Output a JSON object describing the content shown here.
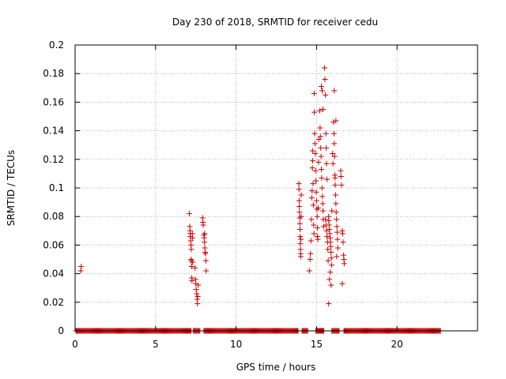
{
  "chart_data": {
    "type": "scatter",
    "title": "Day 230 of 2018, SRMTID for receiver cedu",
    "xlabel": "GPS time / hours",
    "ylabel": "SRMTID / TECUs",
    "xlim": [
      0,
      25
    ],
    "ylim": [
      0,
      0.2
    ],
    "grid": true,
    "x_ticks": [
      {
        "value": 0,
        "label": "0"
      },
      {
        "value": 5,
        "label": "5"
      },
      {
        "value": 10,
        "label": "10"
      },
      {
        "value": 15,
        "label": "15"
      },
      {
        "value": 20,
        "label": "20"
      }
    ],
    "y_ticks": [
      {
        "value": 0,
        "label": "0"
      },
      {
        "value": 0.02,
        "label": "0.02"
      },
      {
        "value": 0.04,
        "label": "0.04"
      },
      {
        "value": 0.06,
        "label": "0.06"
      },
      {
        "value": 0.08,
        "label": "0.08"
      },
      {
        "value": 0.1,
        "label": "0.1"
      },
      {
        "value": 0.12,
        "label": "0.12"
      },
      {
        "value": 0.14,
        "label": "0.14"
      },
      {
        "value": 0.16,
        "label": "0.16"
      },
      {
        "value": 0.18,
        "label": "0.18"
      },
      {
        "value": 0.2,
        "label": "0.2"
      }
    ],
    "marker": "+",
    "color": "#cc0000",
    "zero_baseline_segments": [
      [
        0.05,
        7.2
      ],
      [
        7.35,
        7.75
      ],
      [
        8.0,
        13.85
      ],
      [
        14.1,
        14.45
      ],
      [
        14.95,
        15.45
      ],
      [
        15.95,
        16.4
      ],
      [
        16.7,
        22.7
      ]
    ],
    "zero_baseline_step": 0.05,
    "points": [
      [
        0.35,
        0.042
      ],
      [
        0.38,
        0.045
      ],
      [
        7.1,
        0.082
      ],
      [
        7.12,
        0.073
      ],
      [
        7.14,
        0.07
      ],
      [
        7.15,
        0.068
      ],
      [
        7.16,
        0.066
      ],
      [
        7.18,
        0.063
      ],
      [
        7.2,
        0.06
      ],
      [
        7.2,
        0.05
      ],
      [
        7.22,
        0.057
      ],
      [
        7.22,
        0.049
      ],
      [
        7.24,
        0.045
      ],
      [
        7.25,
        0.037
      ],
      [
        7.26,
        0.035
      ],
      [
        7.28,
        0.068
      ],
      [
        7.3,
        0.065
      ],
      [
        7.3,
        0.048
      ],
      [
        7.45,
        0.044
      ],
      [
        7.48,
        0.036
      ],
      [
        7.5,
        0.033
      ],
      [
        7.52,
        0.029
      ],
      [
        7.55,
        0.026
      ],
      [
        7.58,
        0.022
      ],
      [
        7.6,
        0.019
      ],
      [
        7.62,
        0.024
      ],
      [
        7.65,
        0.032
      ],
      [
        7.92,
        0.079
      ],
      [
        7.94,
        0.076
      ],
      [
        7.96,
        0.074
      ],
      [
        8.0,
        0.067
      ],
      [
        8.02,
        0.065
      ],
      [
        8.04,
        0.062
      ],
      [
        8.06,
        0.058
      ],
      [
        8.08,
        0.055
      ],
      [
        8.1,
        0.054
      ],
      [
        8.12,
        0.049
      ],
      [
        8.14,
        0.042
      ],
      [
        8.05,
        0.068
      ],
      [
        13.9,
        0.103
      ],
      [
        13.91,
        0.099
      ],
      [
        13.92,
        0.091
      ],
      [
        13.93,
        0.087
      ],
      [
        13.94,
        0.083
      ],
      [
        13.95,
        0.079
      ],
      [
        13.96,
        0.075
      ],
      [
        13.97,
        0.071
      ],
      [
        13.98,
        0.066
      ],
      [
        13.99,
        0.061
      ],
      [
        14.0,
        0.057
      ],
      [
        14.01,
        0.054
      ],
      [
        14.02,
        0.052
      ],
      [
        14.03,
        0.064
      ],
      [
        14.04,
        0.08
      ],
      [
        14.05,
        0.095
      ],
      [
        14.55,
        0.042
      ],
      [
        14.6,
        0.05
      ],
      [
        14.62,
        0.054
      ],
      [
        14.65,
        0.063
      ],
      [
        14.68,
        0.078
      ],
      [
        14.7,
        0.093
      ],
      [
        14.72,
        0.098
      ],
      [
        14.74,
        0.114
      ],
      [
        14.75,
        0.126
      ],
      [
        14.76,
        0.119
      ],
      [
        14.78,
        0.103
      ],
      [
        14.8,
        0.088
      ],
      [
        14.82,
        0.074
      ],
      [
        14.84,
        0.068
      ],
      [
        14.85,
        0.166
      ],
      [
        14.86,
        0.153
      ],
      [
        14.88,
        0.138
      ],
      [
        14.9,
        0.131
      ],
      [
        14.92,
        0.124
      ],
      [
        14.94,
        0.112
      ],
      [
        14.96,
        0.105
      ],
      [
        14.98,
        0.097
      ],
      [
        15.0,
        0.091
      ],
      [
        15.02,
        0.085
      ],
      [
        15.04,
        0.08
      ],
      [
        15.05,
        0.072
      ],
      [
        15.06,
        0.066
      ],
      [
        15.08,
        0.064
      ],
      [
        15.1,
        0.086
      ],
      [
        15.12,
        0.118
      ],
      [
        15.14,
        0.134
      ],
      [
        15.2,
        0.154
      ],
      [
        15.22,
        0.142
      ],
      [
        15.24,
        0.136
      ],
      [
        15.26,
        0.128
      ],
      [
        15.28,
        0.122
      ],
      [
        15.3,
        0.113
      ],
      [
        15.32,
        0.107
      ],
      [
        15.34,
        0.1
      ],
      [
        15.36,
        0.094
      ],
      [
        15.38,
        0.089
      ],
      [
        15.4,
        0.084
      ],
      [
        15.42,
        0.078
      ],
      [
        15.44,
        0.073
      ],
      [
        15.3,
        0.171
      ],
      [
        15.35,
        0.168
      ],
      [
        15.4,
        0.155
      ],
      [
        15.5,
        0.184
      ],
      [
        15.52,
        0.176
      ],
      [
        15.55,
        0.165
      ],
      [
        15.58,
        0.138
      ],
      [
        15.6,
        0.128
      ],
      [
        15.62,
        0.117
      ],
      [
        15.65,
        0.106
      ],
      [
        15.55,
        0.078
      ],
      [
        15.6,
        0.074
      ],
      [
        15.62,
        0.07
      ],
      [
        15.65,
        0.066
      ],
      [
        15.68,
        0.062
      ],
      [
        15.7,
        0.057
      ],
      [
        15.72,
        0.049
      ],
      [
        15.75,
        0.08
      ],
      [
        15.76,
        0.077
      ],
      [
        15.78,
        0.074
      ],
      [
        15.8,
        0.071
      ],
      [
        15.82,
        0.068
      ],
      [
        15.84,
        0.065
      ],
      [
        15.86,
        0.062
      ],
      [
        15.88,
        0.059
      ],
      [
        15.9,
        0.055
      ],
      [
        15.92,
        0.051
      ],
      [
        15.94,
        0.046
      ],
      [
        15.8,
        0.036
      ],
      [
        15.85,
        0.041
      ],
      [
        15.75,
        0.019
      ],
      [
        15.9,
        0.032
      ],
      [
        15.95,
        0.084
      ],
      [
        16.0,
        0.124
      ],
      [
        16.02,
        0.117
      ],
      [
        16.05,
        0.146
      ],
      [
        16.08,
        0.138
      ],
      [
        16.1,
        0.131
      ],
      [
        16.12,
        0.122
      ],
      [
        16.14,
        0.109
      ],
      [
        16.16,
        0.102
      ],
      [
        16.18,
        0.095
      ],
      [
        16.2,
        0.089
      ],
      [
        16.22,
        0.083
      ],
      [
        16.24,
        0.078
      ],
      [
        16.26,
        0.073
      ],
      [
        16.28,
        0.069
      ],
      [
        16.3,
        0.064
      ],
      [
        16.32,
        0.058
      ],
      [
        16.1,
        0.168
      ],
      [
        16.2,
        0.147
      ],
      [
        16.15,
        0.107
      ],
      [
        16.25,
        0.052
      ],
      [
        16.5,
        0.112
      ],
      [
        16.52,
        0.108
      ],
      [
        16.55,
        0.102
      ],
      [
        16.6,
        0.07
      ],
      [
        16.62,
        0.068
      ],
      [
        16.65,
        0.062
      ],
      [
        16.68,
        0.053
      ],
      [
        16.7,
        0.05
      ],
      [
        16.72,
        0.047
      ],
      [
        16.6,
        0.033
      ]
    ]
  }
}
